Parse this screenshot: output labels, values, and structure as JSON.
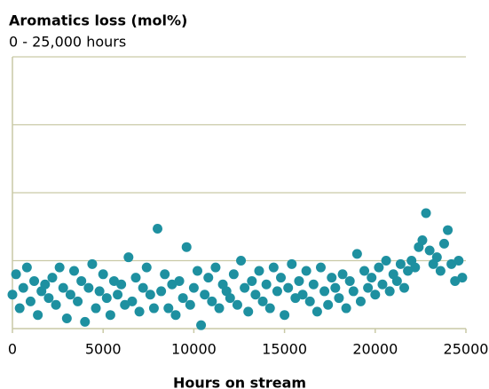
{
  "chart_data": {
    "type": "scatter",
    "title": "Aromatics loss (mol%)",
    "subtitle": "0 - 25,000 hours",
    "x_label": "Hours on stream",
    "xlim": [
      0,
      25000
    ],
    "xticks": [
      0,
      5000,
      10000,
      15000,
      20000,
      25000
    ],
    "ylim": [
      0,
      4
    ],
    "yticks": [
      1,
      2,
      3,
      4
    ],
    "ytick_labels": false,
    "grid": true,
    "series": [
      {
        "color": "#1e90a0",
        "x": [
          0,
          200,
          400,
          600,
          800,
          1000,
          1200,
          1400,
          1600,
          1800,
          2000,
          2200,
          2400,
          2600,
          2800,
          3000,
          3200,
          3400,
          3600,
          3800,
          4000,
          4200,
          4400,
          4600,
          4800,
          5000,
          5200,
          5400,
          5600,
          5800,
          6000,
          6200,
          6400,
          6600,
          6800,
          7000,
          7200,
          7400,
          7600,
          7800,
          8000,
          8200,
          8400,
          8600,
          8800,
          9000,
          9200,
          9400,
          9600,
          9800,
          10000,
          10200,
          10400,
          10600,
          10800,
          11000,
          11200,
          11400,
          11600,
          11800,
          12000,
          12200,
          12400,
          12600,
          12800,
          13000,
          13200,
          13400,
          13600,
          13800,
          14000,
          14200,
          14400,
          14600,
          14800,
          15000,
          15200,
          15400,
          15600,
          15800,
          16000,
          16200,
          16400,
          16600,
          16800,
          17000,
          17200,
          17400,
          17600,
          17800,
          18000,
          18200,
          18400,
          18600,
          18800,
          19000,
          19200,
          19400,
          19600,
          19800,
          20000,
          20200,
          20400,
          20600,
          20800,
          21000,
          21200,
          21400,
          21600,
          21800,
          22000,
          22200,
          22400,
          22600,
          22800,
          23000,
          23200,
          23400,
          23600,
          23800,
          24000,
          24200,
          24400,
          24600,
          24800
        ],
        "values": [
          0.5,
          0.8,
          0.3,
          0.6,
          0.9,
          0.4,
          0.7,
          0.2,
          0.55,
          0.65,
          0.45,
          0.75,
          0.35,
          0.9,
          0.6,
          0.15,
          0.5,
          0.85,
          0.4,
          0.7,
          0.1,
          0.6,
          0.95,
          0.3,
          0.55,
          0.8,
          0.45,
          0.2,
          0.7,
          0.5,
          0.65,
          0.35,
          1.05,
          0.4,
          0.75,
          0.25,
          0.6,
          0.9,
          0.5,
          0.3,
          1.47,
          0.55,
          0.8,
          0.3,
          0.65,
          0.2,
          0.7,
          0.45,
          1.2,
          0.35,
          0.6,
          0.85,
          0.05,
          0.5,
          0.75,
          0.4,
          0.9,
          0.3,
          0.65,
          0.55,
          0.45,
          0.8,
          0.35,
          1.0,
          0.6,
          0.25,
          0.7,
          0.5,
          0.85,
          0.4,
          0.65,
          0.3,
          0.9,
          0.55,
          0.75,
          0.2,
          0.6,
          0.95,
          0.45,
          0.7,
          0.5,
          0.85,
          0.4,
          0.65,
          0.25,
          0.9,
          0.55,
          0.35,
          0.75,
          0.6,
          0.45,
          0.8,
          0.3,
          0.7,
          0.55,
          1.1,
          0.4,
          0.85,
          0.6,
          0.75,
          0.5,
          0.9,
          0.65,
          1.0,
          0.55,
          0.8,
          0.7,
          0.95,
          0.6,
          0.85,
          1.0,
          0.9,
          1.2,
          1.3,
          1.7,
          1.15,
          0.95,
          1.05,
          0.85,
          1.25,
          1.45,
          0.95,
          0.7,
          1.0,
          0.75
        ]
      }
    ]
  }
}
